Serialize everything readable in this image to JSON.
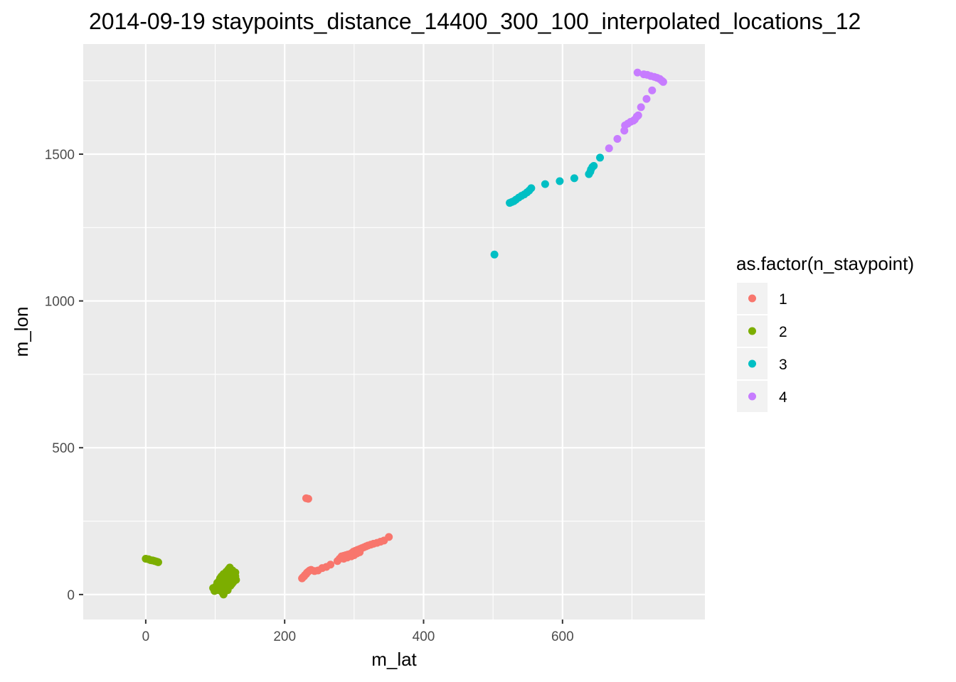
{
  "chart_data": {
    "type": "scatter",
    "title": "2014-09-19 staypoints_distance_14400_300_100_interpolated_locations_12",
    "xlabel": "m_lat",
    "ylabel": "m_lon",
    "xlim": [
      -90,
      805
    ],
    "ylim": [
      -85,
      1875
    ],
    "x_ticks": [
      0,
      200,
      400,
      600
    ],
    "x_tick_labels": [
      "0",
      "200",
      "400",
      "600"
    ],
    "y_ticks": [
      0,
      500,
      1000,
      1500
    ],
    "y_tick_labels": [
      "0",
      "500",
      "1000",
      "1500"
    ],
    "grid": true,
    "legend": {
      "title": "as.factor(n_staypoint)",
      "position": "right"
    },
    "series": [
      {
        "name": "1",
        "color": "#F8766D",
        "points": [
          [
            231,
            328
          ],
          [
            234,
            326
          ],
          [
            225,
            55
          ],
          [
            226,
            58
          ],
          [
            228,
            62
          ],
          [
            229,
            66
          ],
          [
            231,
            70
          ],
          [
            232,
            74
          ],
          [
            234,
            78
          ],
          [
            236,
            82
          ],
          [
            238,
            84
          ],
          [
            243,
            80
          ],
          [
            248,
            82
          ],
          [
            254,
            90
          ],
          [
            260,
            94
          ],
          [
            266,
            102
          ],
          [
            276,
            114
          ],
          [
            279,
            122
          ],
          [
            282,
            130
          ],
          [
            285,
            132
          ],
          [
            288,
            134
          ],
          [
            291,
            136
          ],
          [
            294,
            138
          ],
          [
            297,
            142
          ],
          [
            299,
            146
          ],
          [
            302,
            149
          ],
          [
            305,
            152
          ],
          [
            308,
            155
          ],
          [
            311,
            158
          ],
          [
            314,
            161
          ],
          [
            317,
            164
          ],
          [
            320,
            167
          ],
          [
            324,
            170
          ],
          [
            328,
            173
          ],
          [
            333,
            176
          ],
          [
            338,
            180
          ],
          [
            343,
            184
          ],
          [
            350,
            196
          ],
          [
            285,
            122
          ],
          [
            290,
            126
          ],
          [
            296,
            130
          ],
          [
            300,
            134
          ],
          [
            304,
            140
          ],
          [
            308,
            144
          ]
        ]
      },
      {
        "name": "2",
        "color": "#7CAE00",
        "points": [
          [
            0,
            122
          ],
          [
            4,
            120
          ],
          [
            7,
            117
          ],
          [
            10,
            116
          ],
          [
            13,
            114
          ],
          [
            16,
            112
          ],
          [
            18,
            110
          ],
          [
            97,
            22
          ],
          [
            99,
            12
          ],
          [
            101,
            28
          ],
          [
            103,
            40
          ],
          [
            105,
            18
          ],
          [
            107,
            55
          ],
          [
            108,
            32
          ],
          [
            109,
            62
          ],
          [
            110,
            8
          ],
          [
            111,
            45
          ],
          [
            112,
            70
          ],
          [
            113,
            25
          ],
          [
            114,
            52
          ],
          [
            115,
            12
          ],
          [
            116,
            78
          ],
          [
            117,
            38
          ],
          [
            118,
            66
          ],
          [
            119,
            86
          ],
          [
            120,
            48
          ],
          [
            121,
            92
          ],
          [
            122,
            30
          ],
          [
            123,
            72
          ],
          [
            124,
            58
          ],
          [
            125,
            82
          ],
          [
            126,
            42
          ],
          [
            127,
            68
          ],
          [
            128,
            55
          ],
          [
            129,
            75
          ],
          [
            130,
            50
          ],
          [
            112,
            0
          ],
          [
            114,
            20
          ],
          [
            116,
            30
          ],
          [
            118,
            15
          ],
          [
            120,
            60
          ],
          [
            122,
            44
          ],
          [
            124,
            36
          ],
          [
            126,
            62
          ],
          [
            104,
            15
          ],
          [
            106,
            48
          ],
          [
            108,
            58
          ],
          [
            110,
            22
          ],
          [
            115,
            35
          ],
          [
            117,
            52
          ],
          [
            119,
            28
          ],
          [
            121,
            70
          ],
          [
            123,
            50
          ],
          [
            125,
            40
          ],
          [
            127,
            74
          ],
          [
            129,
            62
          ]
        ]
      },
      {
        "name": "3",
        "color": "#00BFC4",
        "points": [
          [
            502,
            1158
          ],
          [
            524,
            1334
          ],
          [
            527,
            1337
          ],
          [
            530,
            1340
          ],
          [
            533,
            1345
          ],
          [
            537,
            1352
          ],
          [
            541,
            1358
          ],
          [
            545,
            1363
          ],
          [
            549,
            1370
          ],
          [
            552,
            1376
          ],
          [
            555,
            1384
          ],
          [
            575,
            1398
          ],
          [
            596,
            1408
          ],
          [
            617,
            1418
          ],
          [
            638,
            1432
          ],
          [
            640,
            1440
          ],
          [
            641,
            1448
          ],
          [
            643,
            1456
          ],
          [
            645,
            1460
          ],
          [
            654,
            1488
          ]
        ]
      },
      {
        "name": "4",
        "color": "#C77CFF",
        "points": [
          [
            667,
            1520
          ],
          [
            679,
            1552
          ],
          [
            689,
            1580
          ],
          [
            690,
            1598
          ],
          [
            694,
            1604
          ],
          [
            698,
            1610
          ],
          [
            702,
            1614
          ],
          [
            704,
            1618
          ],
          [
            707,
            1628
          ],
          [
            709,
            1632
          ],
          [
            713,
            1660
          ],
          [
            721,
            1688
          ],
          [
            729,
            1717
          ],
          [
            708,
            1778
          ],
          [
            717,
            1772
          ],
          [
            722,
            1770
          ],
          [
            727,
            1766
          ],
          [
            732,
            1763
          ],
          [
            736,
            1760
          ],
          [
            740,
            1756
          ],
          [
            743,
            1750
          ],
          [
            745,
            1746
          ]
        ]
      }
    ]
  }
}
